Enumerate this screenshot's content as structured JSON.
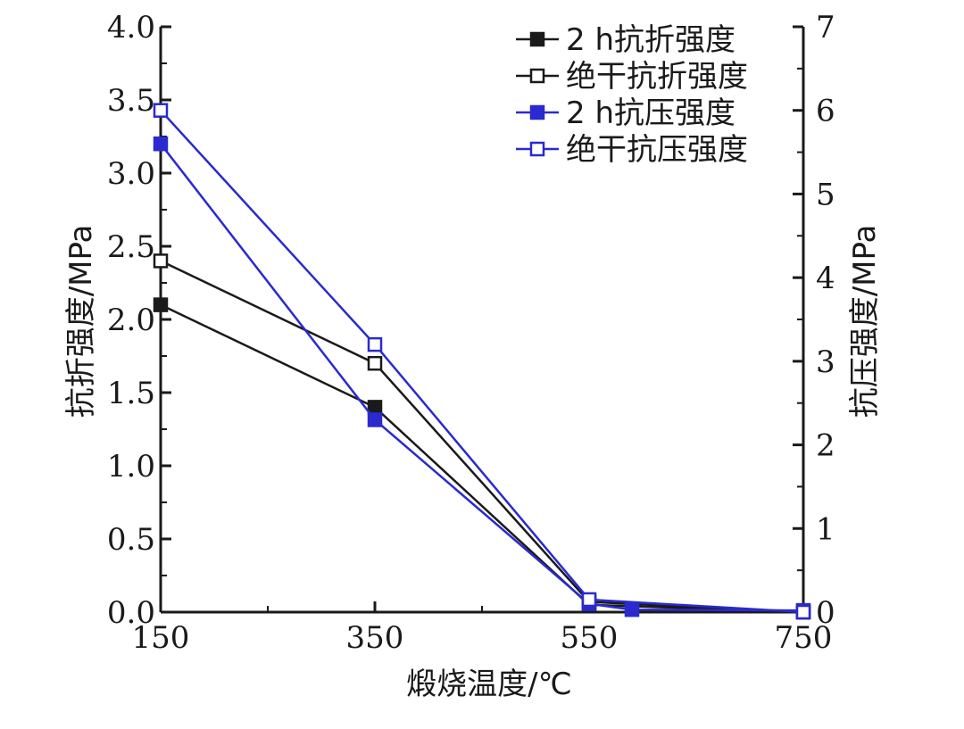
{
  "chart_data": {
    "type": "line",
    "xlabel": "煅烧温度/℃",
    "ylabel_left": "抗折强度/MPa",
    "ylabel_right": "抗压强度/MPa",
    "x_ticks": [
      "150",
      "350",
      "550",
      "750"
    ],
    "xlim": [
      150,
      750
    ],
    "ylim_left": [
      0,
      4
    ],
    "ylim_right": [
      0,
      7
    ],
    "y_ticks_left": [
      "0.0",
      "0.5",
      "1.0",
      "1.5",
      "2.0",
      "2.5",
      "3.0",
      "3.5",
      "4.0"
    ],
    "y_ticks_right": [
      "0",
      "1",
      "2",
      "3",
      "4",
      "5",
      "6",
      "7"
    ],
    "grid": false,
    "legend_position": "top-right",
    "series": [
      {
        "name": "2 h抗折强度",
        "axis": "left",
        "color": "#1a1a1a",
        "marker": "filled-square",
        "x": [
          150,
          350,
          550,
          750
        ],
        "y": [
          2.1,
          1.4,
          0.05,
          0.0
        ]
      },
      {
        "name": "绝干抗折强度",
        "axis": "left",
        "color": "#1a1a1a",
        "marker": "open-square",
        "x": [
          150,
          350,
          550,
          750
        ],
        "y": [
          2.4,
          1.7,
          0.07,
          0.0
        ]
      },
      {
        "name": "2 h抗压强度",
        "axis": "right",
        "color": "#2a2acf",
        "marker": "filled-square",
        "x": [
          150,
          350,
          550,
          590,
          750
        ],
        "y": [
          5.6,
          2.3,
          0.1,
          0.03,
          0.02
        ]
      },
      {
        "name": "绝干抗压强度",
        "axis": "right",
        "color": "#2a2acf",
        "marker": "open-square",
        "x": [
          150,
          350,
          550,
          750
        ],
        "y": [
          6.0,
          3.2,
          0.15,
          0.0
        ]
      }
    ]
  }
}
